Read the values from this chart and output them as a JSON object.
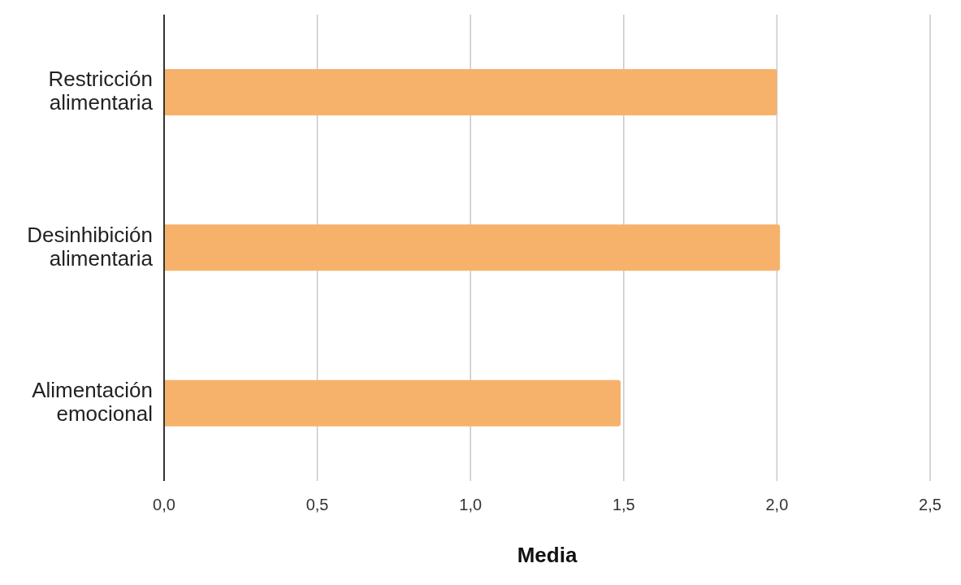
{
  "chart_data": {
    "type": "bar",
    "orientation": "horizontal",
    "xlabel": "Media",
    "categories": [
      "Restricción alimentaria",
      "Desinhibición alimentaria",
      "Alimentación emocional"
    ],
    "values": [
      2.0,
      2.01,
      1.49
    ],
    "color": "#f6b26b",
    "xlim": [
      0,
      2.5
    ],
    "xticks": [
      {
        "value": 0,
        "label": "0,0"
      },
      {
        "value": 0.5,
        "label": "0,5"
      },
      {
        "value": 1,
        "label": "1,0"
      },
      {
        "value": 1.5,
        "label": "1,5"
      },
      {
        "value": 2,
        "label": "2,0"
      },
      {
        "value": 2.5,
        "label": "2,5"
      }
    ],
    "grid": "x"
  }
}
